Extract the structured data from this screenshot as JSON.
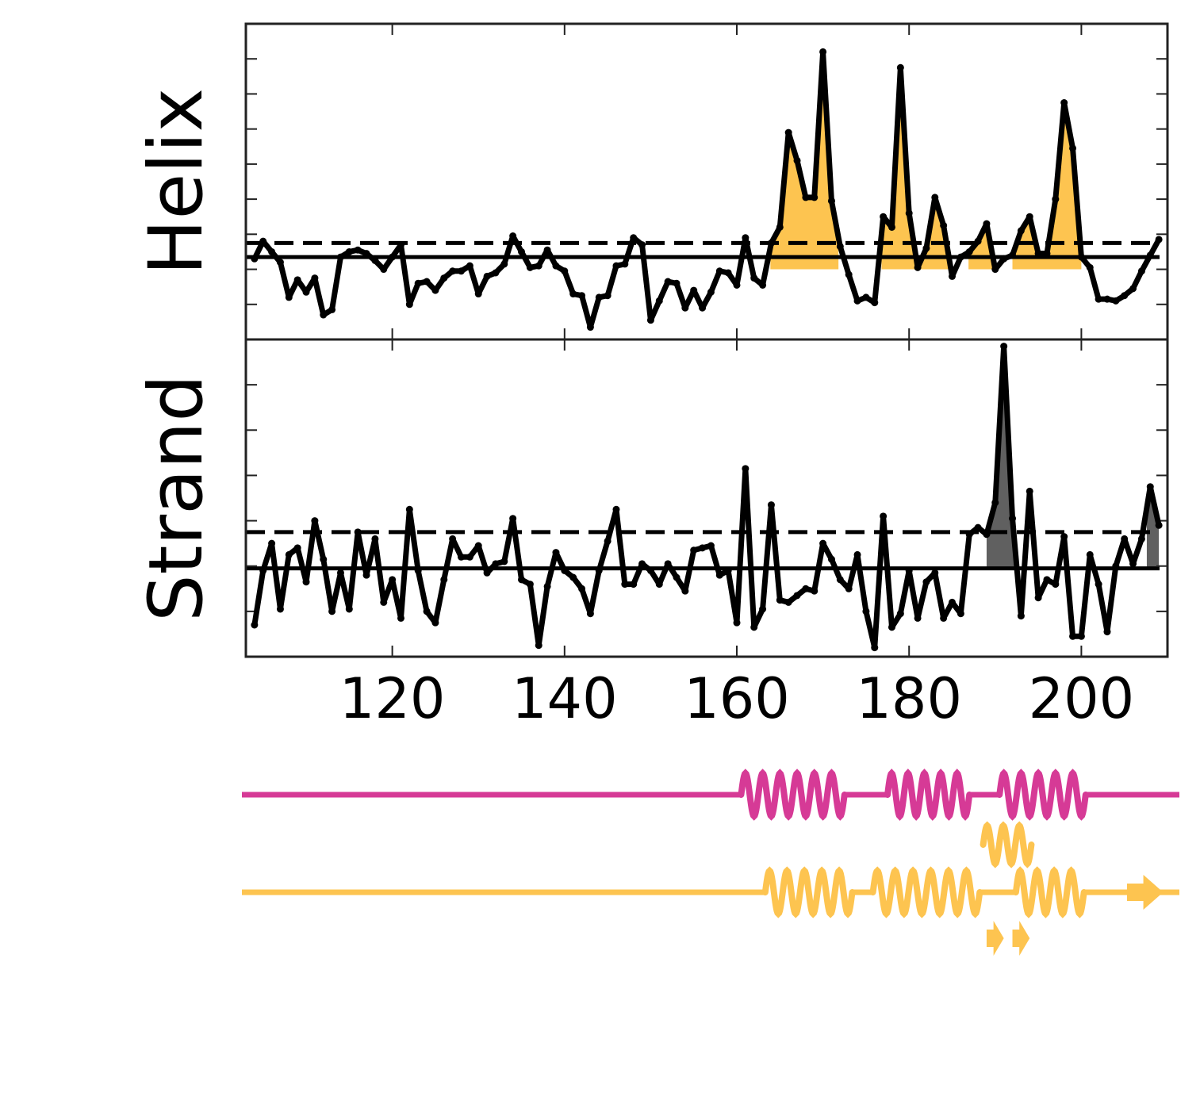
{
  "chart_data": [
    {
      "type": "line",
      "ylabel": "Helix",
      "xlim": [
        103,
        210
      ],
      "ylim": [
        0,
        9
      ],
      "yticks": [
        1,
        2,
        3,
        4,
        5,
        6,
        7,
        8
      ],
      "x": [
        104,
        105,
        106,
        107,
        108,
        109,
        110,
        111,
        112,
        113,
        114,
        115,
        116,
        117,
        118,
        119,
        120,
        121,
        122,
        123,
        124,
        125,
        126,
        127,
        128,
        129,
        130,
        131,
        132,
        133,
        134,
        135,
        136,
        137,
        138,
        139,
        140,
        141,
        142,
        143,
        144,
        145,
        146,
        147,
        148,
        149,
        150,
        151,
        152,
        153,
        154,
        155,
        156,
        157,
        158,
        159,
        160,
        161,
        162,
        163,
        164,
        165,
        166,
        167,
        168,
        169,
        170,
        171,
        172,
        173,
        174,
        175,
        176,
        177,
        178,
        179,
        180,
        181,
        182,
        183,
        184,
        185,
        186,
        187,
        188,
        189,
        190,
        191,
        192,
        193,
        194,
        195,
        196,
        197,
        198,
        199,
        200,
        201,
        202,
        203,
        204,
        205,
        206,
        207,
        208,
        209
      ],
      "series": [
        {
          "color": "#000000",
          "values": [
            2.3,
            2.8,
            2.5,
            2.2,
            1.2,
            1.7,
            1.35,
            1.75,
            0.7,
            0.85,
            2.35,
            2.5,
            2.55,
            2.45,
            2.25,
            2.0,
            2.35,
            2.7,
            1.0,
            1.6,
            1.65,
            1.4,
            1.75,
            1.95,
            1.95,
            2.1,
            1.3,
            1.8,
            1.9,
            2.15,
            2.95,
            2.5,
            2.05,
            2.1,
            2.55,
            2.1,
            1.95,
            1.3,
            1.25,
            0.35,
            1.2,
            1.25,
            2.1,
            2.15,
            2.9,
            2.7,
            0.55,
            1.1,
            1.65,
            1.6,
            0.9,
            1.4,
            0.9,
            1.35,
            1.95,
            1.9,
            1.55,
            2.9,
            1.75,
            1.55,
            2.75,
            3.2,
            5.9,
            5.1,
            4.05,
            4.05,
            8.2,
            3.95,
            2.65,
            1.85,
            1.1,
            1.2,
            1.05,
            3.5,
            3.2,
            7.75,
            3.6,
            2.05,
            2.6,
            4.05,
            3.25,
            1.8,
            2.35,
            2.5,
            2.8,
            3.3,
            2.0,
            2.3,
            2.4,
            3.1,
            3.5,
            2.45,
            2.45,
            4.0,
            6.75,
            5.45,
            2.35,
            2.05,
            1.15,
            1.15,
            1.1,
            1.25,
            1.45,
            1.95,
            2.4,
            2.85
          ]
        }
      ],
      "lines": [
        {
          "value": 2.35,
          "style": "solid"
        },
        {
          "value": 2.75,
          "style": "dashed"
        }
      ],
      "fills": [
        {
          "start": 163.9,
          "end": 171.8,
          "base": 2.0,
          "color": "#fdc450"
        },
        {
          "start": 176.8,
          "end": 184.7,
          "base": 2.0,
          "color": "#fdc450"
        },
        {
          "start": 186.9,
          "end": 190,
          "base": 2.0,
          "color": "#fdc450"
        },
        {
          "start": 192,
          "end": 200,
          "base": 2.0,
          "color": "#fdc450"
        }
      ]
    },
    {
      "type": "line",
      "ylabel": "Strand",
      "xlim": [
        103,
        210
      ],
      "ylim": [
        0,
        7
      ],
      "yticks": [
        1,
        2,
        3,
        4,
        5,
        6
      ],
      "xticks": [
        120,
        140,
        160,
        180,
        200
      ],
      "x": [
        104,
        105,
        106,
        107,
        108,
        109,
        110,
        111,
        112,
        113,
        114,
        115,
        116,
        117,
        118,
        119,
        120,
        121,
        122,
        123,
        124,
        125,
        126,
        127,
        128,
        129,
        130,
        131,
        132,
        133,
        134,
        135,
        136,
        137,
        138,
        139,
        140,
        141,
        142,
        143,
        144,
        145,
        146,
        147,
        148,
        149,
        150,
        151,
        152,
        153,
        154,
        155,
        156,
        157,
        158,
        159,
        160,
        161,
        162,
        163,
        164,
        165,
        166,
        167,
        168,
        169,
        170,
        171,
        172,
        173,
        174,
        175,
        176,
        177,
        178,
        179,
        180,
        181,
        182,
        183,
        184,
        185,
        186,
        187,
        188,
        189,
        190,
        191,
        192,
        193,
        194,
        195,
        196,
        197,
        198,
        199,
        200,
        201,
        202,
        203,
        204,
        205,
        206,
        207,
        208,
        209
      ],
      "series": [
        {
          "color": "#000000",
          "values": [
            0.7,
            1.9,
            2.5,
            1.05,
            2.25,
            2.4,
            1.65,
            3.0,
            2.15,
            1.0,
            1.85,
            1.05,
            2.75,
            1.8,
            2.6,
            1.2,
            1.7,
            0.85,
            3.25,
            1.9,
            1.0,
            0.75,
            1.7,
            2.6,
            2.2,
            2.2,
            2.45,
            1.85,
            2.05,
            2.1,
            3.05,
            1.7,
            1.6,
            0.25,
            1.55,
            2.3,
            1.9,
            1.75,
            1.5,
            0.95,
            1.9,
            2.55,
            3.25,
            1.6,
            1.6,
            2.05,
            1.9,
            1.6,
            2.05,
            1.75,
            1.45,
            2.35,
            2.4,
            2.45,
            1.8,
            1.9,
            0.75,
            4.15,
            0.65,
            1.05,
            3.35,
            1.25,
            1.2,
            1.35,
            1.5,
            1.45,
            2.5,
            2.15,
            1.7,
            1.5,
            2.25,
            1.0,
            0.2,
            3.1,
            0.65,
            0.95,
            1.9,
            0.85,
            1.65,
            1.85,
            0.85,
            1.2,
            0.95,
            2.7,
            2.85,
            2.7,
            3.4,
            6.85,
            3.05,
            0.9,
            3.65,
            1.3,
            1.7,
            1.6,
            2.65,
            0.45,
            0.45,
            2.25,
            1.6,
            0.55,
            2.0,
            2.6,
            2.05,
            2.6,
            3.75,
            2.9
          ]
        }
      ],
      "lines": [
        {
          "value": 1.95,
          "style": "solid"
        },
        {
          "value": 2.75,
          "style": "dashed"
        }
      ],
      "fills": [
        {
          "start": 189,
          "end": 192.2,
          "base": 1.95,
          "color": "#606060"
        },
        {
          "start": 207.6,
          "end": 209,
          "base": 1.95,
          "color": "#606060"
        }
      ]
    }
  ],
  "structure_tracks": [
    {
      "color": "#d63a96",
      "backbone": true,
      "elements": [
        {
          "type": "helix",
          "start": 160.5,
          "end": 172.5
        },
        {
          "type": "helix",
          "start": 177.5,
          "end": 187
        },
        {
          "type": "helix",
          "start": 190.5,
          "end": 200.5
        }
      ]
    },
    {
      "color": "#fdc450",
      "backbone": false,
      "elements": [
        {
          "type": "helix",
          "start": 188.6,
          "end": 194.2
        }
      ]
    },
    {
      "color": "#fdc450",
      "backbone": true,
      "elements": [
        {
          "type": "helix",
          "start": 163.3,
          "end": 173.4
        },
        {
          "type": "helix",
          "start": 175.8,
          "end": 188.2
        },
        {
          "type": "helix",
          "start": 192.4,
          "end": 200.3
        },
        {
          "type": "strand",
          "start": 205.3,
          "end": 209.5
        }
      ]
    },
    {
      "color": "#fdc450",
      "backbone": false,
      "elements": [
        {
          "type": "strand",
          "start": 189,
          "end": 191
        },
        {
          "type": "strand",
          "start": 192,
          "end": 194
        }
      ]
    }
  ]
}
